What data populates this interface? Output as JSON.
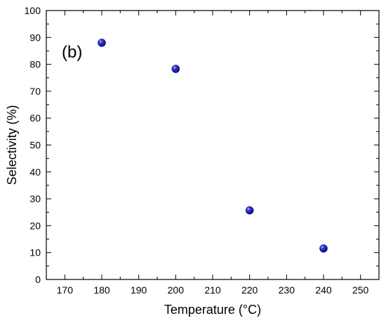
{
  "chart_data": {
    "type": "scatter",
    "title": "",
    "annotation": "(b)",
    "xlabel": "Temperature (°C)",
    "ylabel": "Selectivity (%)",
    "xlim": [
      165,
      255
    ],
    "ylim": [
      0,
      100
    ],
    "xticks": [
      170,
      180,
      190,
      200,
      210,
      220,
      230,
      240,
      250
    ],
    "yticks": [
      0,
      10,
      20,
      30,
      40,
      50,
      60,
      70,
      80,
      90,
      100
    ],
    "grid": false,
    "legend": "none",
    "marker_color": "#1a1aa6",
    "series": [
      {
        "x": [
          180,
          200,
          220,
          240
        ],
        "y": [
          88,
          78.3,
          25.7,
          11.5
        ]
      }
    ]
  }
}
